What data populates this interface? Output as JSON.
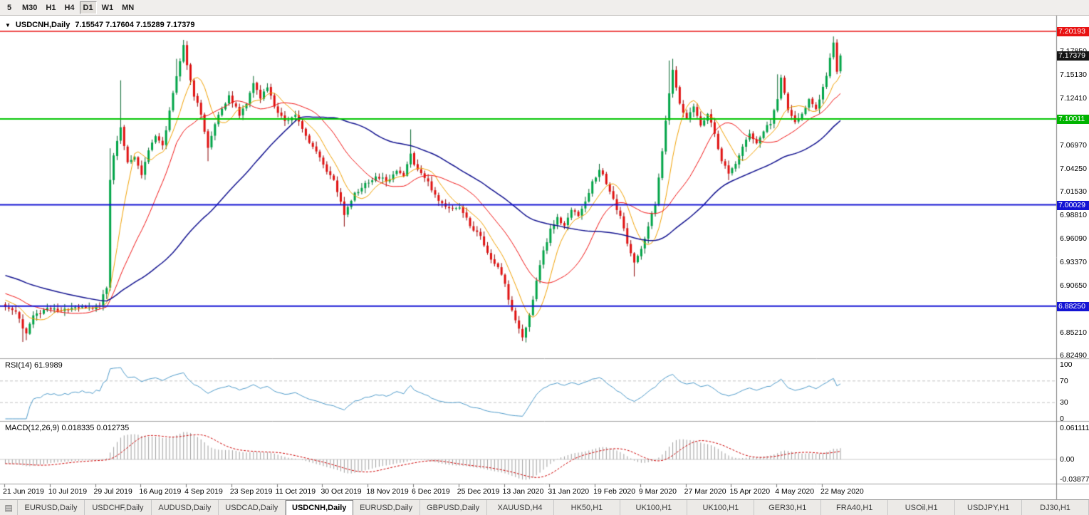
{
  "toolbar": {
    "buttons": [
      {
        "label": "5",
        "active": false
      },
      {
        "label": "M30",
        "active": false
      },
      {
        "label": "H1",
        "active": false
      },
      {
        "label": "H4",
        "active": false
      },
      {
        "label": "D1",
        "active": true
      },
      {
        "label": "W1",
        "active": false
      },
      {
        "label": "MN",
        "active": false
      }
    ]
  },
  "chart": {
    "header": {
      "dropdown_icon": "▼",
      "symbol": "USDCNH,Daily",
      "ohlc": "7.15547 7.17604 7.15289 7.17379"
    },
    "price_axis": {
      "labels": [
        "7.17850",
        "7.15130",
        "7.12410",
        "7.06970",
        "7.04250",
        "7.01530",
        "6.98810",
        "6.96090",
        "6.93370",
        "6.90650",
        "6.85210",
        "6.82490"
      ]
    },
    "hlines": [
      {
        "value": 7.20193,
        "color": "#e81212",
        "width": 1.5
      },
      {
        "value": 7.10011,
        "color": "#00c400",
        "width": 2
      },
      {
        "value": 7.00029,
        "color": "#1414d4",
        "width": 2
      },
      {
        "value": 6.8825,
        "color": "#1414d4",
        "width": 2
      }
    ],
    "badges": [
      {
        "text": "7.20193",
        "value": 7.20193,
        "color": "#e81212"
      },
      {
        "text": "7.17379",
        "value": 7.17379,
        "color": "#151515"
      },
      {
        "text": "7.10011",
        "value": 7.10011,
        "color": "#00b400"
      },
      {
        "text": "7.00029",
        "value": 7.00029,
        "color": "#1414d4"
      },
      {
        "text": "6.88250",
        "value": 6.8825,
        "color": "#1414d4"
      }
    ]
  },
  "rsi": {
    "label": "RSI(14) 61.9989",
    "color": "#4e9ac9",
    "levels": [
      {
        "text": "100",
        "value": 100
      },
      {
        "text": "70",
        "value": 70
      },
      {
        "text": "30",
        "value": 30
      },
      {
        "text": "0",
        "value": 0
      }
    ],
    "dashed_levels": [
      70,
      30
    ]
  },
  "macd": {
    "label": "MACD(12,26,9) 0.018335 0.012735",
    "bar_color": "#9e9e9e",
    "signal_color": "#cc0000",
    "levels": [
      {
        "text": "0.061111",
        "value": 0.061111
      },
      {
        "text": "0.00",
        "value": 0
      },
      {
        "text": "-0.03877",
        "value": -0.03877
      }
    ]
  },
  "dates": {
    "labels": [
      "21 Jun 2019",
      "10 Jul 2019",
      "29 Jul 2019",
      "16 Aug 2019",
      "4 Sep 2019",
      "23 Sep 2019",
      "11 Oct 2019",
      "30 Oct 2019",
      "18 Nov 2019",
      "6 Dec 2019",
      "25 Dec 2019",
      "13 Jan 2020",
      "31 Jan 2020",
      "19 Feb 2020",
      "9 Mar 2020",
      "27 Mar 2020",
      "15 Apr 2020",
      "4 May 2020",
      "22 May 2020"
    ]
  },
  "tabs": {
    "icon": "▤",
    "items": [
      {
        "label": "EURUSD,Daily",
        "active": false
      },
      {
        "label": "USDCHF,Daily",
        "active": false
      },
      {
        "label": "AUDUSD,Daily",
        "active": false
      },
      {
        "label": "USDCAD,Daily",
        "active": false
      },
      {
        "label": "USDCNH,Daily",
        "active": true
      },
      {
        "label": "EURUSD,Daily",
        "active": false
      },
      {
        "label": "GBPUSD,Daily",
        "active": false
      },
      {
        "label": "XAUUSD,H4",
        "active": false
      },
      {
        "label": "HK50,H1",
        "active": false
      },
      {
        "label": "UK100,H1",
        "active": false
      },
      {
        "label": "UK100,H1",
        "active": false
      },
      {
        "label": "GER30,H1",
        "active": false
      },
      {
        "label": "FRA40,H1",
        "active": false
      },
      {
        "label": "USOil,H1",
        "active": false
      },
      {
        "label": "USDJPY,H1",
        "active": false
      },
      {
        "label": "DJ30,H1",
        "active": false
      }
    ]
  },
  "chart_data": {
    "type": "candlestick",
    "symbol": "USDCNH",
    "timeframe": "Daily",
    "bars": 240,
    "last_bar": {
      "open": 7.15547,
      "high": 7.17604,
      "low": 7.15289,
      "close": 7.17379
    },
    "horizontal_levels": [
      7.20193,
      7.10011,
      7.00029,
      6.8825
    ],
    "rsi_current": 61.9989,
    "macd_current": [
      0.018335,
      0.012735
    ],
    "close_anchors": [
      [
        0,
        6.883
      ],
      [
        3,
        6.876
      ],
      [
        5,
        6.858
      ],
      [
        6,
        6.852
      ],
      [
        8,
        6.872
      ],
      [
        12,
        6.88
      ],
      [
        16,
        6.877
      ],
      [
        20,
        6.883
      ],
      [
        24,
        6.879
      ],
      [
        27,
        6.884
      ],
      [
        29,
        6.905
      ],
      [
        30,
        7.03
      ],
      [
        31,
        7.058
      ],
      [
        33,
        7.09
      ],
      [
        35,
        7.048
      ],
      [
        37,
        7.058
      ],
      [
        39,
        7.036
      ],
      [
        41,
        7.062
      ],
      [
        43,
        7.082
      ],
      [
        45,
        7.068
      ],
      [
        47,
        7.108
      ],
      [
        49,
        7.152
      ],
      [
        51,
        7.186
      ],
      [
        52,
        7.162
      ],
      [
        54,
        7.128
      ],
      [
        56,
        7.106
      ],
      [
        58,
        7.066
      ],
      [
        60,
        7.094
      ],
      [
        62,
        7.114
      ],
      [
        64,
        7.126
      ],
      [
        67,
        7.106
      ],
      [
        69,
        7.118
      ],
      [
        71,
        7.142
      ],
      [
        73,
        7.126
      ],
      [
        75,
        7.136
      ],
      [
        77,
        7.116
      ],
      [
        80,
        7.096
      ],
      [
        83,
        7.104
      ],
      [
        86,
        7.08
      ],
      [
        89,
        7.062
      ],
      [
        91,
        7.046
      ],
      [
        94,
        7.03
      ],
      [
        97,
        6.99
      ],
      [
        100,
        7.014
      ],
      [
        103,
        7.024
      ],
      [
        106,
        7.034
      ],
      [
        109,
        7.028
      ],
      [
        112,
        7.04
      ],
      [
        114,
        7.033
      ],
      [
        116,
        7.058
      ],
      [
        118,
        7.04
      ],
      [
        121,
        7.026
      ],
      [
        124,
        7.006
      ],
      [
        127,
        6.996
      ],
      [
        130,
        6.999
      ],
      [
        133,
        6.976
      ],
      [
        136,
        6.962
      ],
      [
        139,
        6.936
      ],
      [
        142,
        6.921
      ],
      [
        144,
        6.892
      ],
      [
        146,
        6.866
      ],
      [
        148,
        6.847
      ],
      [
        150,
        6.872
      ],
      [
        152,
        6.912
      ],
      [
        154,
        6.946
      ],
      [
        156,
        6.972
      ],
      [
        158,
        6.986
      ],
      [
        160,
        6.976
      ],
      [
        162,
        6.996
      ],
      [
        164,
        6.986
      ],
      [
        166,
        7.006
      ],
      [
        168,
        7.026
      ],
      [
        170,
        7.042
      ],
      [
        172,
        7.026
      ],
      [
        174,
        7.006
      ],
      [
        176,
        6.986
      ],
      [
        178,
        6.956
      ],
      [
        180,
        6.932
      ],
      [
        182,
        6.948
      ],
      [
        184,
        6.976
      ],
      [
        186,
        7.002
      ],
      [
        188,
        7.062
      ],
      [
        190,
        7.132
      ],
      [
        191,
        7.156
      ],
      [
        193,
        7.116
      ],
      [
        195,
        7.102
      ],
      [
        197,
        7.116
      ],
      [
        199,
        7.092
      ],
      [
        201,
        7.106
      ],
      [
        203,
        7.082
      ],
      [
        205,
        7.052
      ],
      [
        207,
        7.036
      ],
      [
        209,
        7.046
      ],
      [
        211,
        7.066
      ],
      [
        213,
        7.082
      ],
      [
        215,
        7.072
      ],
      [
        217,
        7.086
      ],
      [
        219,
        7.096
      ],
      [
        221,
        7.122
      ],
      [
        222,
        7.146
      ],
      [
        224,
        7.112
      ],
      [
        226,
        7.096
      ],
      [
        228,
        7.106
      ],
      [
        230,
        7.122
      ],
      [
        232,
        7.112
      ],
      [
        234,
        7.136
      ],
      [
        235,
        7.15
      ],
      [
        236,
        7.17
      ],
      [
        237,
        7.19
      ],
      [
        238,
        7.156
      ],
      [
        239,
        7.17379
      ]
    ],
    "wick_highs": [
      [
        30,
        7.066
      ],
      [
        33,
        7.145
      ],
      [
        49,
        7.17
      ],
      [
        51,
        7.192
      ],
      [
        71,
        7.15
      ],
      [
        116,
        7.088
      ],
      [
        170,
        7.048
      ],
      [
        190,
        7.168
      ],
      [
        191,
        7.17
      ],
      [
        221,
        7.152
      ],
      [
        237,
        7.196
      ]
    ],
    "wick_lows": [
      [
        5,
        6.841
      ],
      [
        6,
        6.843
      ],
      [
        58,
        7.051
      ],
      [
        97,
        6.975
      ],
      [
        148,
        6.842
      ],
      [
        180,
        6.917
      ],
      [
        207,
        7.029
      ]
    ],
    "prehistory": {
      "start": 6.958,
      "slope": -0.0012,
      "bars": 60
    },
    "moving_averages": [
      {
        "period": 8,
        "color": "#f0a000",
        "width": 1
      },
      {
        "period": 20,
        "color": "#f01414",
        "width": 1
      },
      {
        "period": 55,
        "color": "#12128f",
        "width": 1.5
      }
    ],
    "colors": {
      "up": "#00a447",
      "up_stroke": "#00642c",
      "down": "#e01010",
      "down_stroke": "#8a0000"
    }
  }
}
